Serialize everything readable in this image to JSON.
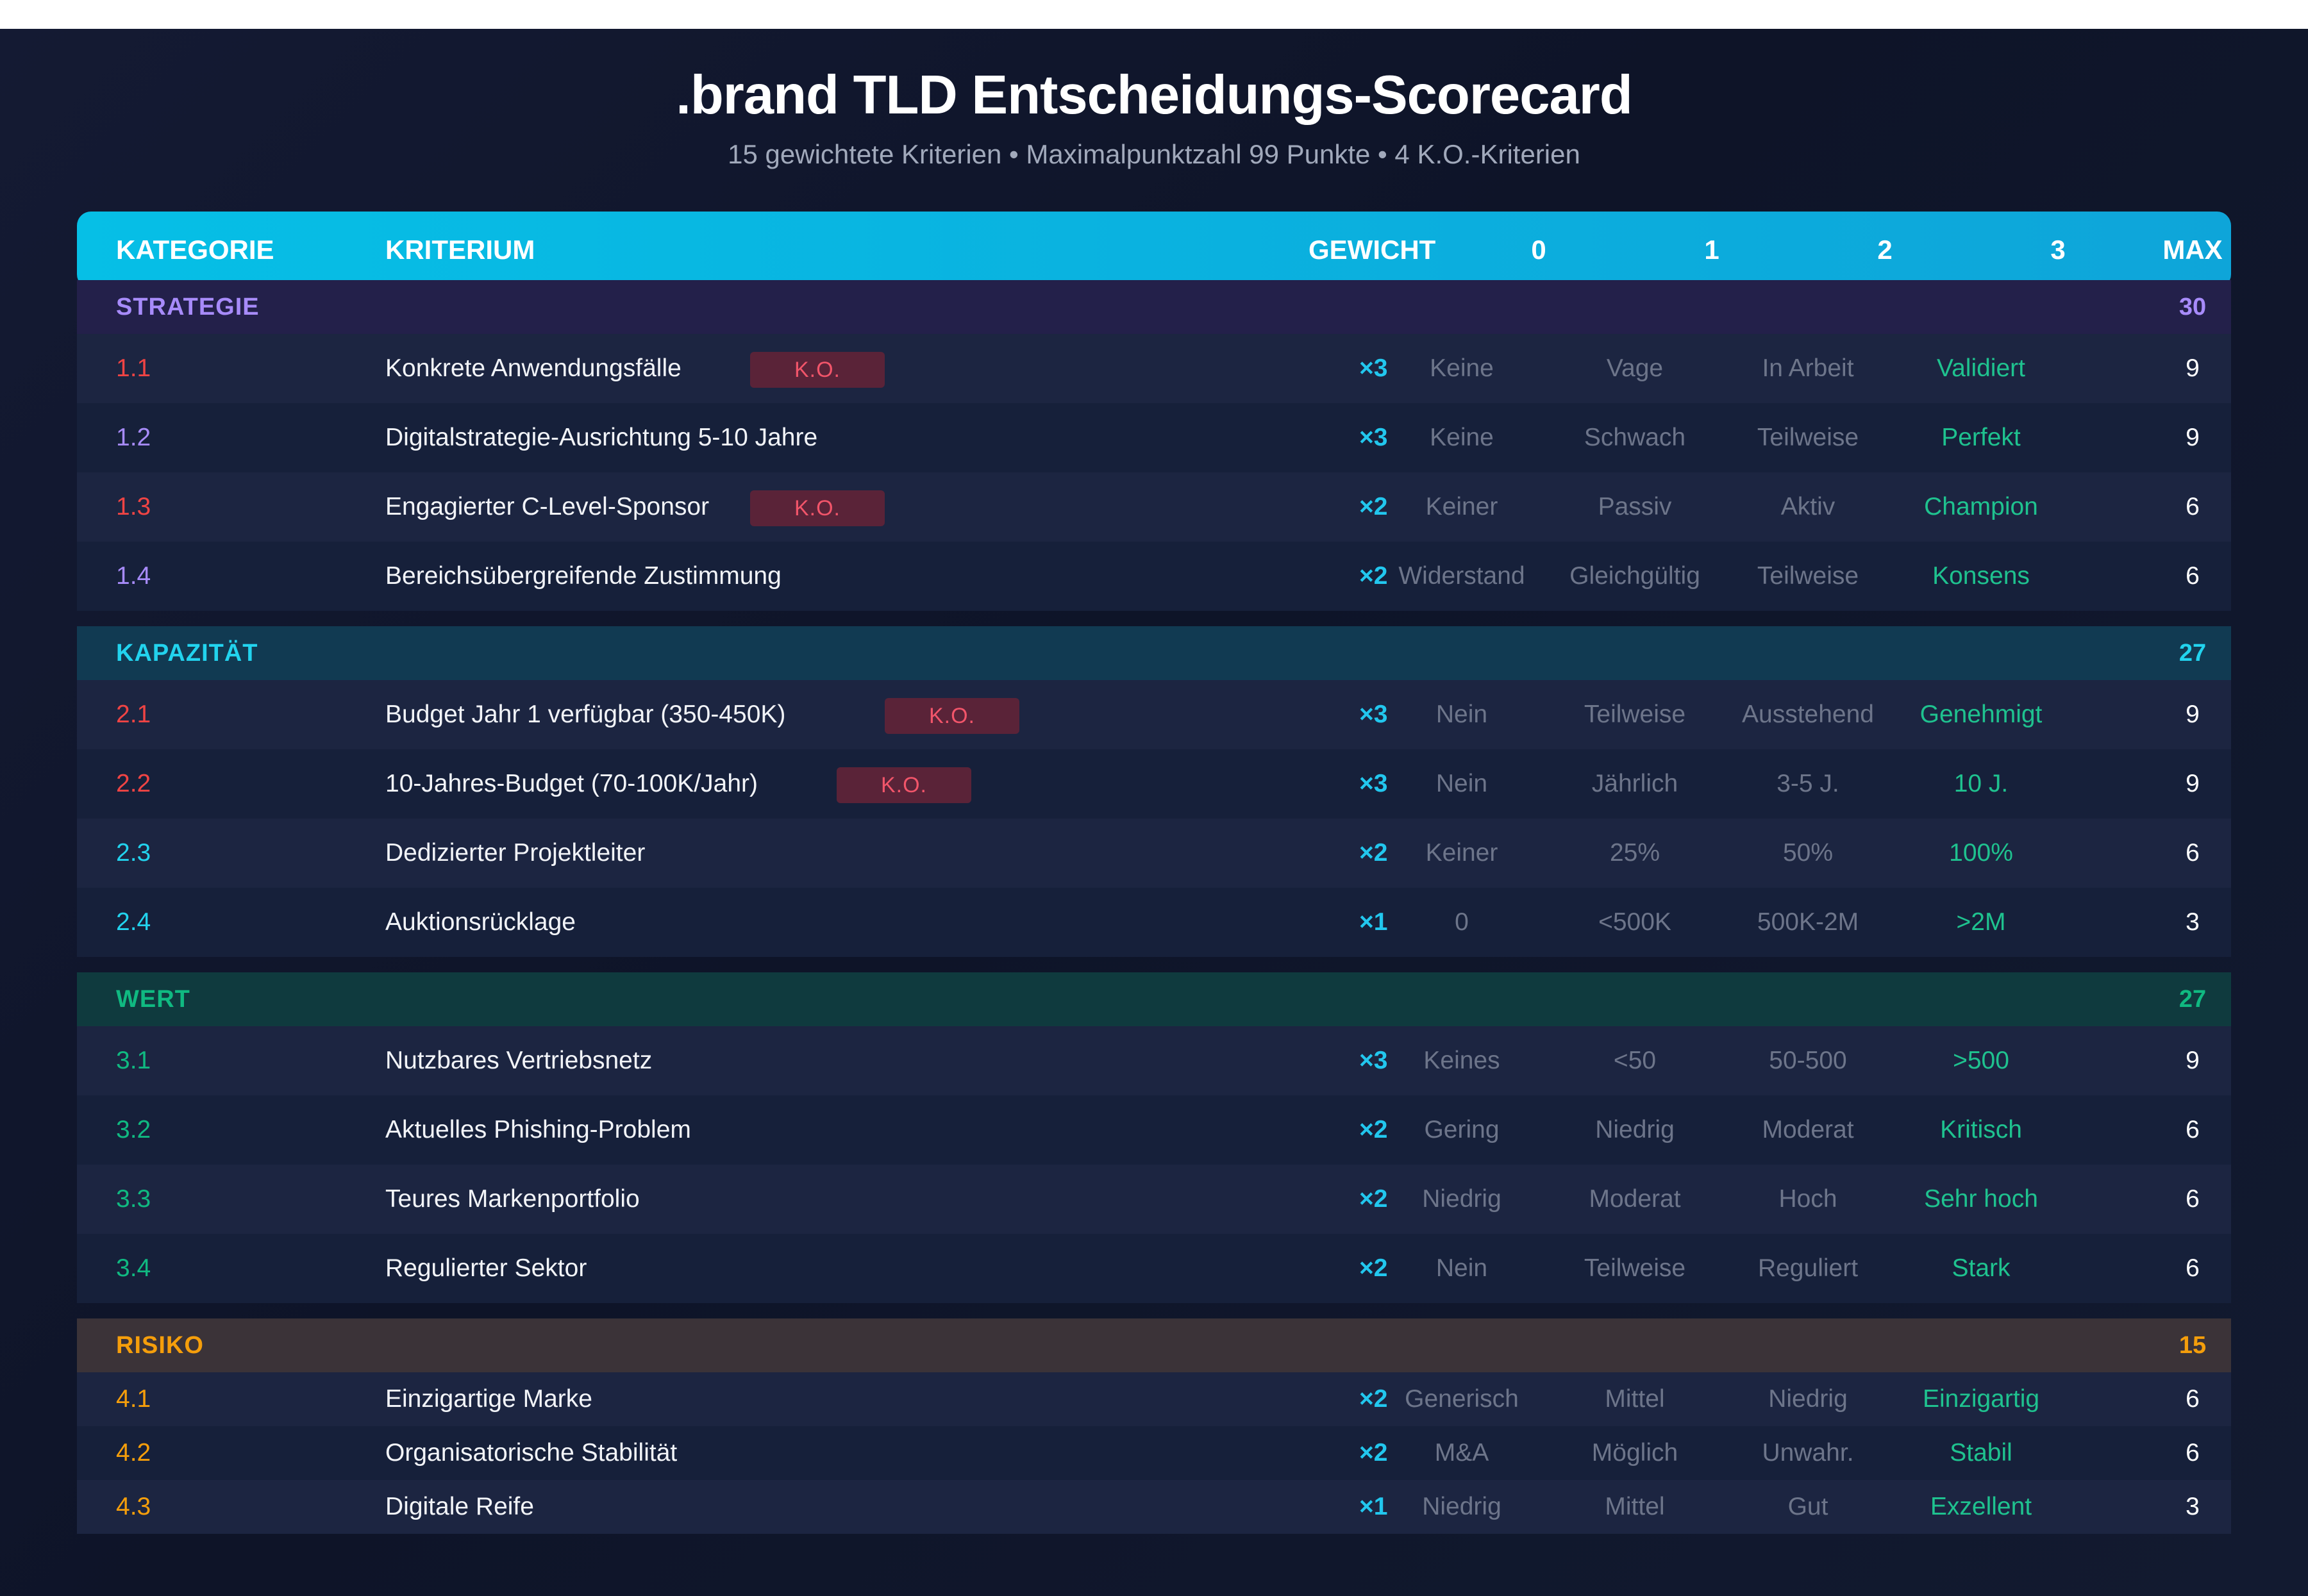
{
  "title": ".brand TLD Entscheidungs-Scorecard",
  "subtitle": "15 gewichtete Kriterien • Maximalpunktzahl 99 Punkte • 4 K.O.-Kriterien",
  "columns": [
    "KATEGORIE",
    "KRITERIUM",
    "GEWICHT",
    "0",
    "1",
    "2",
    "3",
    "MAX"
  ],
  "ko_label": "K.O.",
  "colors": {
    "header": "#06bfe6",
    "strategie": "#a78bfa",
    "kapazitaet": "#22d3ee",
    "wert": "#10b981",
    "risiko": "#f59e0b",
    "ko": "#ef4444",
    "best_option": "#1fc28f"
  },
  "sections": [
    {
      "name": "STRATEGIE",
      "total": "30",
      "rows": [
        {
          "id": "1.1",
          "name": "Konkrete Anwendungsfälle",
          "ko": true,
          "weight": "×3",
          "opts": [
            "Keine",
            "Vage",
            "In Arbeit",
            "Validiert"
          ],
          "max": "9"
        },
        {
          "id": "1.2",
          "name": "Digitalstrategie-Ausrichtung 5-10 Jahre",
          "ko": false,
          "weight": "×3",
          "opts": [
            "Keine",
            "Schwach",
            "Teilweise",
            "Perfekt"
          ],
          "max": "9"
        },
        {
          "id": "1.3",
          "name": "Engagierter C-Level-Sponsor",
          "ko": true,
          "weight": "×2",
          "opts": [
            "Keiner",
            "Passiv",
            "Aktiv",
            "Champion"
          ],
          "max": "6"
        },
        {
          "id": "1.4",
          "name": "Bereichsübergreifende Zustimmung",
          "ko": false,
          "weight": "×2",
          "opts": [
            "Widerstand",
            "Gleichgültig",
            "Teilweise",
            "Konsens"
          ],
          "max": "6"
        }
      ]
    },
    {
      "name": "KAPAZITÄT",
      "total": "27",
      "rows": [
        {
          "id": "2.1",
          "name": "Budget Jahr 1 verfügbar (350-450K)",
          "ko": true,
          "weight": "×3",
          "opts": [
            "Nein",
            "Teilweise",
            "Ausstehend",
            "Genehmigt"
          ],
          "max": "9"
        },
        {
          "id": "2.2",
          "name": "10-Jahres-Budget (70-100K/Jahr)",
          "ko": true,
          "weight": "×3",
          "opts": [
            "Nein",
            "Jährlich",
            "3-5 J.",
            "10 J."
          ],
          "max": "9"
        },
        {
          "id": "2.3",
          "name": "Dedizierter Projektleiter",
          "ko": false,
          "weight": "×2",
          "opts": [
            "Keiner",
            "25%",
            "50%",
            "100%"
          ],
          "max": "6"
        },
        {
          "id": "2.4",
          "name": "Auktionsrücklage",
          "ko": false,
          "weight": "×1",
          "opts": [
            "0",
            "<500K",
            "500K-2M",
            ">2M"
          ],
          "max": "3"
        }
      ]
    },
    {
      "name": "WERT",
      "total": "27",
      "rows": [
        {
          "id": "3.1",
          "name": "Nutzbares Vertriebsnetz",
          "ko": false,
          "weight": "×3",
          "opts": [
            "Keines",
            "<50",
            "50-500",
            ">500"
          ],
          "max": "9"
        },
        {
          "id": "3.2",
          "name": "Aktuelles Phishing-Problem",
          "ko": false,
          "weight": "×2",
          "opts": [
            "Gering",
            "Niedrig",
            "Moderat",
            "Kritisch"
          ],
          "max": "6"
        },
        {
          "id": "3.3",
          "name": "Teures Markenportfolio",
          "ko": false,
          "weight": "×2",
          "opts": [
            "Niedrig",
            "Moderat",
            "Hoch",
            "Sehr hoch"
          ],
          "max": "6"
        },
        {
          "id": "3.4",
          "name": "Regulierter Sektor",
          "ko": false,
          "weight": "×2",
          "opts": [
            "Nein",
            "Teilweise",
            "Reguliert",
            "Stark"
          ],
          "max": "6"
        }
      ]
    },
    {
      "name": "RISIKO",
      "total": "15",
      "rows": [
        {
          "id": "4.1",
          "name": "Einzigartige Marke",
          "ko": false,
          "weight": "×2",
          "opts": [
            "Generisch",
            "Mittel",
            "Niedrig",
            "Einzigartig"
          ],
          "max": "6"
        },
        {
          "id": "4.2",
          "name": "Organisatorische Stabilität",
          "ko": false,
          "weight": "×2",
          "opts": [
            "M&A",
            "Möglich",
            "Unwahr.",
            "Stabil"
          ],
          "max": "6"
        },
        {
          "id": "4.3",
          "name": "Digitale Reife",
          "ko": false,
          "weight": "×1",
          "opts": [
            "Niedrig",
            "Mittel",
            "Gut",
            "Exzellent"
          ],
          "max": "3"
        }
      ]
    }
  ]
}
